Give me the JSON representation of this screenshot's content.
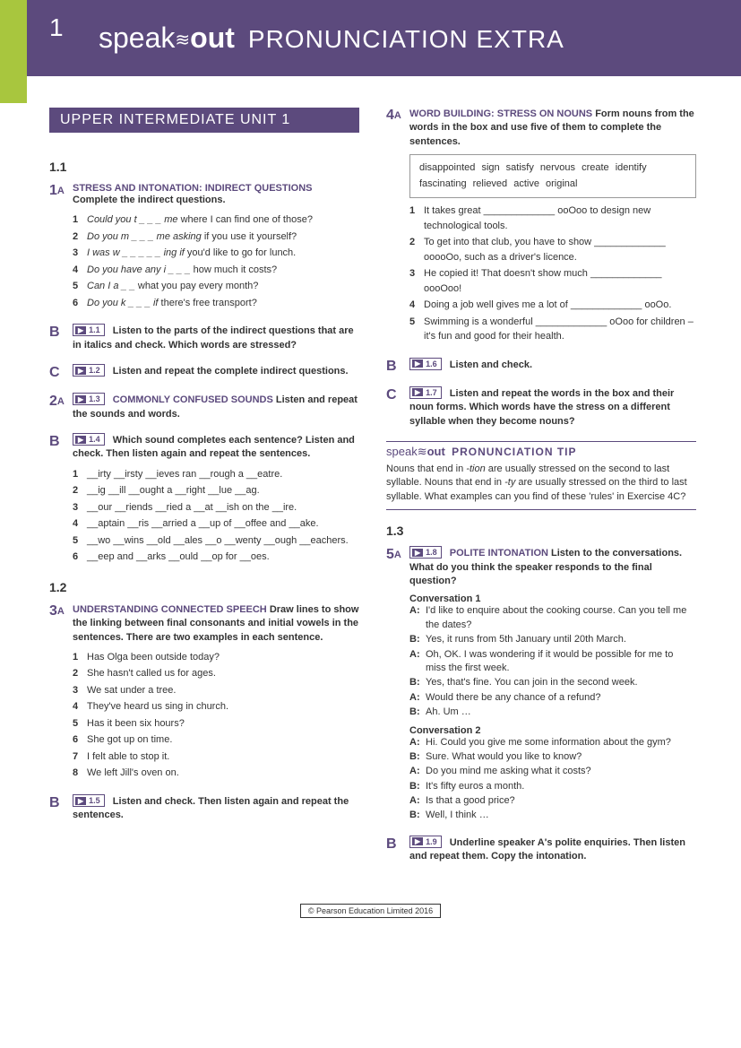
{
  "page_number": "1",
  "logo": {
    "part1": "speak",
    "part2": "out"
  },
  "header_title": "PRONUNCIATION EXTRA",
  "unit_banner": "UPPER INTERMEDIATE UNIT 1",
  "footer": "© Pearson Education Limited 2016",
  "colors": {
    "primary": "#5c4a7d",
    "accent": "#a8c63e",
    "text": "#333333",
    "background": "#ffffff"
  },
  "sections": {
    "s11": "1.1",
    "s12": "1.2",
    "s13": "1.3"
  },
  "ex1A": {
    "num": "1",
    "sub": "A",
    "title": "STRESS and INTONATION: indirect questions",
    "instr": "Complete the indirect questions.",
    "items": [
      {
        "n": "1",
        "pre": "Could you t _ _ _ me ",
        "tail": "where I can find one of those?"
      },
      {
        "n": "2",
        "pre": "Do you m _ _ _ me asking ",
        "tail": "if you use it yourself?"
      },
      {
        "n": "3",
        "pre": "I was w _ _ _ _ _ ing if ",
        "tail": "you'd like to go for lunch."
      },
      {
        "n": "4",
        "pre": "Do you have any i _ _ _ ",
        "tail": "how much it costs?"
      },
      {
        "n": "5",
        "pre": "Can I a _ _ ",
        "tail": "what you pay every month?"
      },
      {
        "n": "6",
        "pre": "Do you k _ _ _ if ",
        "tail": "there's free transport?"
      }
    ]
  },
  "ex1B": {
    "num": "B",
    "audio": "1.1",
    "instr": "Listen to the parts of the indirect questions that are in italics and check. Which words are stressed?"
  },
  "ex1C": {
    "num": "C",
    "audio": "1.2",
    "instr": "Listen and repeat the complete indirect questions."
  },
  "ex2A": {
    "num": "2",
    "sub": "A",
    "audio": "1.3",
    "title": "COMMONLY CONFUSED SOUNDS",
    "instr": "Listen and repeat the sounds and words."
  },
  "ex2B": {
    "num": "B",
    "audio": "1.4",
    "instr": "Which sound completes each sentence? Listen and check. Then listen again and repeat the sentences.",
    "items": [
      {
        "n": "1",
        "t": "__irty __irsty __ieves ran __rough a __eatre."
      },
      {
        "n": "2",
        "t": "__ig __ill __ought a __right __lue __ag."
      },
      {
        "n": "3",
        "t": "__our __riends __ried a __at __ish on the __ire."
      },
      {
        "n": "4",
        "t": "__aptain __ris __arried a __up of __offee and __ake."
      },
      {
        "n": "5",
        "t": "__wo __wins __old __ales __o __wenty __ough __eachers."
      },
      {
        "n": "6",
        "t": "__eep and __arks __ould __op for __oes."
      }
    ]
  },
  "ex3A": {
    "num": "3",
    "sub": "A",
    "title": "UNDERSTANDING CONNECTED SPEECH",
    "instr": "Draw lines to show the linking between final consonants and initial vowels in the sentences. There are two examples in each sentence.",
    "items": [
      {
        "n": "1",
        "t": "Has Olga been outside today?"
      },
      {
        "n": "2",
        "t": "She hasn't called us for ages."
      },
      {
        "n": "3",
        "t": "We sat under a tree."
      },
      {
        "n": "4",
        "t": "They've heard us sing in church."
      },
      {
        "n": "5",
        "t": "Has it been six hours?"
      },
      {
        "n": "6",
        "t": "She got up on time."
      },
      {
        "n": "7",
        "t": "I felt able to stop it."
      },
      {
        "n": "8",
        "t": "We left Jill's oven on."
      }
    ]
  },
  "ex3B": {
    "num": "B",
    "audio": "1.5",
    "instr": "Listen and check. Then listen again and repeat the sentences."
  },
  "ex4A": {
    "num": "4",
    "sub": "A",
    "title": "WORD BUILDING: stress on nouns",
    "instr": "Form nouns from the words in the box and use five of them to complete the sentences.",
    "wordbox": "disappointed   sign   satisfy   nervous   create   identify   fascinating   relieved   active   original",
    "items": [
      {
        "n": "1",
        "t": "It takes great _____________ ooOoo to design new technological tools."
      },
      {
        "n": "2",
        "t": "To get into that club, you have to show _____________ ooooOo, such as a driver's licence."
      },
      {
        "n": "3",
        "t": "He copied it! That doesn't show much _____________ oooOoo!"
      },
      {
        "n": "4",
        "t": "Doing a job well gives me a lot of _____________ ooOo."
      },
      {
        "n": "5",
        "t": "Swimming is a wonderful _____________ oOoo for children – it's fun and good for their health."
      }
    ]
  },
  "ex4B": {
    "num": "B",
    "audio": "1.6",
    "instr": "Listen and check."
  },
  "ex4C": {
    "num": "C",
    "audio": "1.7",
    "instr": "Listen and repeat the words in the box and their noun forms. Which words have the stress on a different syllable when they become nouns?"
  },
  "tip": {
    "title": "PRONUNCIATION TIP",
    "text_p1": "Nouns that end in ",
    "text_i1": "-tion",
    "text_p2": " are usually stressed on the second to last syllable. Nouns that end in ",
    "text_i2": "-ty",
    "text_p3": " are usually stressed on the third to last syllable. What examples can you find of these 'rules' in Exercise 4C?"
  },
  "ex5A": {
    "num": "5",
    "sub": "A",
    "audio": "1.8",
    "title": "POLITE INTONATION",
    "instr": "Listen to the conversations. What do you think the speaker responds to the final question?",
    "conv1_label": "Conversation 1",
    "conv1": [
      {
        "s": "A:",
        "t": "I'd like to enquire about the cooking course. Can you tell me the dates?"
      },
      {
        "s": "B:",
        "t": "Yes, it runs from 5th January until 20th March."
      },
      {
        "s": "A:",
        "t": "Oh, OK. I was wondering if it would be possible for me to miss the first week."
      },
      {
        "s": "B:",
        "t": "Yes, that's fine. You can join in the second week."
      },
      {
        "s": "A:",
        "t": "Would there be any chance of a refund?"
      },
      {
        "s": "B:",
        "t": "Ah. Um …"
      }
    ],
    "conv2_label": "Conversation 2",
    "conv2": [
      {
        "s": "A:",
        "t": "Hi. Could you give me some information about the gym?"
      },
      {
        "s": "B:",
        "t": "Sure. What would you like to know?"
      },
      {
        "s": "A:",
        "t": "Do you mind me asking what it costs?"
      },
      {
        "s": "B:",
        "t": "It's fifty euros a month."
      },
      {
        "s": "A:",
        "t": "Is that a good price?"
      },
      {
        "s": "B:",
        "t": "Well, I think …"
      }
    ]
  },
  "ex5B": {
    "num": "B",
    "audio": "1.9",
    "instr": "Underline speaker A's polite enquiries. Then listen and repeat them. Copy the intonation."
  }
}
